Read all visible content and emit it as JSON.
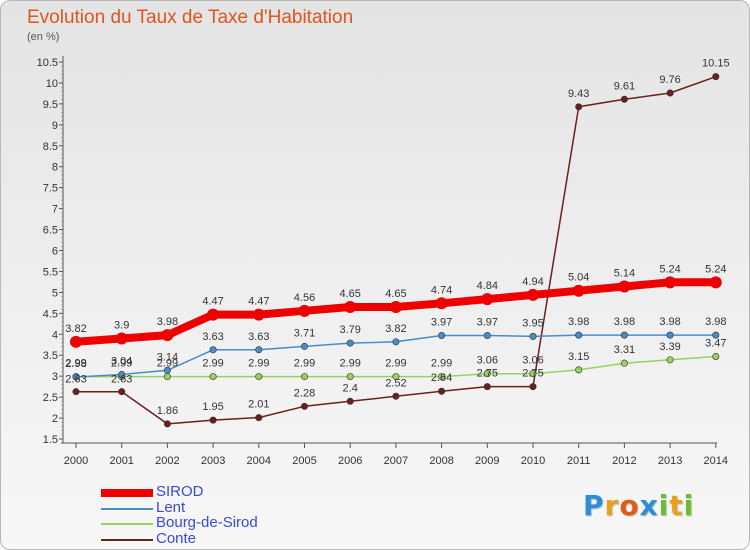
{
  "header": {
    "title": "Evolution du Taux de Taxe d'Habitation",
    "unit": "(en %)"
  },
  "logo": {
    "parts": [
      {
        "text": "P",
        "color": "#2a8fd6"
      },
      {
        "text": "r",
        "color": "#e8a11a"
      },
      {
        "text": "o",
        "color": "#e05a1b"
      },
      {
        "text": "x",
        "color": "#2a8fd6"
      },
      {
        "text": "i",
        "color": "#6cbf2a"
      },
      {
        "text": "t",
        "color": "#e8a11a"
      },
      {
        "text": "i",
        "color": "#6cbf2a"
      }
    ]
  },
  "chart_data": {
    "type": "line",
    "title": "Evolution du Taux de Taxe d'Habitation",
    "ylabel": "(en %)",
    "xlabel": "",
    "x": [
      "2000",
      "2001",
      "2002",
      "2003",
      "2004",
      "2005",
      "2006",
      "2007",
      "2008",
      "2009",
      "2010",
      "2011",
      "2012",
      "2013",
      "2014"
    ],
    "ylim": [
      1.5,
      10.5
    ],
    "yticks": [
      "1.5",
      "2",
      "2.5",
      "3",
      "3.5",
      "4",
      "4.5",
      "5",
      "5.5",
      "6",
      "6.5",
      "7",
      "7.5",
      "8",
      "8.5",
      "9",
      "9.5",
      "10",
      "10.5"
    ],
    "grid": false,
    "legend_position": "bottom-left",
    "series": [
      {
        "name": "SIROD",
        "color": "#ee0000",
        "values": [
          3.82,
          3.9,
          3.98,
          4.47,
          4.47,
          4.56,
          4.65,
          4.65,
          4.74,
          4.84,
          4.94,
          5.04,
          5.14,
          5.24,
          5.24
        ],
        "labels": [
          "3.82",
          "3.9",
          "3.98",
          "4.47",
          "4.47",
          "4.56",
          "4.65",
          "4.65",
          "4.74",
          "4.84",
          "4.94",
          "5.04",
          "5.14",
          "5.24",
          "5.24"
        ]
      },
      {
        "name": "Lent",
        "color": "#4a8cc8",
        "values": [
          2.98,
          3.04,
          3.14,
          3.63,
          3.63,
          3.71,
          3.79,
          3.82,
          3.97,
          3.97,
          3.95,
          3.98,
          3.98,
          3.98,
          3.98
        ],
        "labels": [
          "2.98",
          "3.04",
          "3.14",
          "3.63",
          "3.63",
          "3.71",
          "3.79",
          "3.82",
          "3.97",
          "3.97",
          "3.95",
          "3.98",
          "3.98",
          "3.98",
          "3.98"
        ]
      },
      {
        "name": "Bourg-de-Sirod",
        "color": "#99d160",
        "values": [
          2.99,
          2.99,
          2.99,
          2.99,
          2.99,
          2.99,
          2.99,
          2.99,
          2.99,
          3.06,
          3.06,
          3.15,
          3.31,
          3.39,
          3.47
        ],
        "labels": [
          "2.99",
          "2.99",
          "2.99",
          "2.99",
          "2.99",
          "2.99",
          "2.99",
          "2.99",
          "2.99",
          "3.06",
          "3.06",
          "3.15",
          "3.31",
          "3.39",
          "3.47"
        ]
      },
      {
        "name": "Conte",
        "color": "#6b1f1f",
        "values": [
          2.63,
          2.63,
          1.86,
          1.95,
          2.01,
          2.28,
          2.4,
          2.52,
          2.64,
          2.75,
          2.75,
          9.43,
          9.61,
          9.76,
          10.15
        ],
        "labels": [
          "2.63",
          "2.63",
          "1.86",
          "1.95",
          "2.01",
          "2.28",
          "2.4",
          "2.52",
          "2.64",
          "2.75",
          "2.75",
          "9.43",
          "9.61",
          "9.76",
          "10.15"
        ]
      }
    ]
  }
}
